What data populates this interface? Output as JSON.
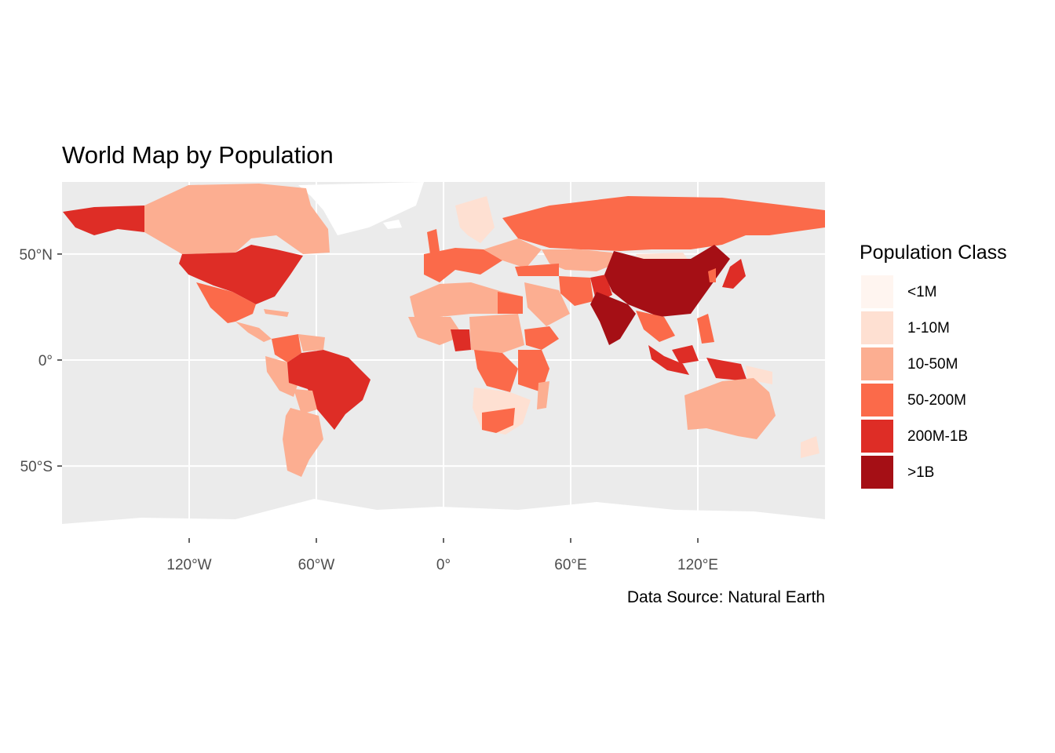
{
  "title": "World Map by Population",
  "caption": "Data Source: Natural Earth",
  "legend": {
    "title": "Population Class",
    "items": [
      {
        "label": "<1M",
        "color": "#fff5f0"
      },
      {
        "label": "1-10M",
        "color": "#fee0d2"
      },
      {
        "label": "10-50M",
        "color": "#fcae91"
      },
      {
        "label": "50-200M",
        "color": "#fb6a4a"
      },
      {
        "label": "200M-1B",
        "color": "#de2d26"
      },
      {
        "label": ">1B",
        "color": "#a50f15"
      }
    ]
  },
  "axes": {
    "x_ticks": [
      {
        "value": -120,
        "label": "120°W"
      },
      {
        "value": -60,
        "label": "60°W"
      },
      {
        "value": 0,
        "label": "0°"
      },
      {
        "value": 60,
        "label": "60°E"
      },
      {
        "value": 120,
        "label": "120°E"
      }
    ],
    "y_ticks": [
      {
        "value": 50,
        "label": "50°N"
      },
      {
        "value": 0,
        "label": "0°"
      },
      {
        "value": -50,
        "label": "50°S"
      }
    ],
    "xlim": [
      -180,
      180
    ],
    "ylim": [
      -84,
      84
    ],
    "grid": true
  },
  "colors": {
    "panel": "#ebebeb",
    "grid": "#ffffff",
    "land_no_data": "#ffffff"
  }
}
